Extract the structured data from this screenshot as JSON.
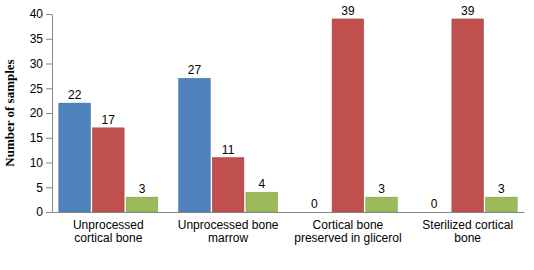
{
  "chart_data": {
    "type": "bar",
    "y_label": "Number of samples",
    "categories": [
      "Unprocessed cortical bone",
      "Unprocessed bone marrow",
      "Cortical bone preserved in glicerol",
      "Sterilized cortical bone"
    ],
    "series": [
      {
        "color": "#4f81bd",
        "values": [
          22,
          27,
          0,
          0
        ]
      },
      {
        "color": "#c0504d",
        "values": [
          17,
          11,
          39,
          39
        ]
      },
      {
        "color": "#9bbb59",
        "values": [
          3,
          4,
          3,
          3
        ]
      }
    ],
    "ylim": [
      0,
      40
    ],
    "yticks": [
      0,
      5,
      10,
      15,
      20,
      25,
      30,
      35,
      40
    ],
    "grid": false,
    "data_labels": true
  }
}
